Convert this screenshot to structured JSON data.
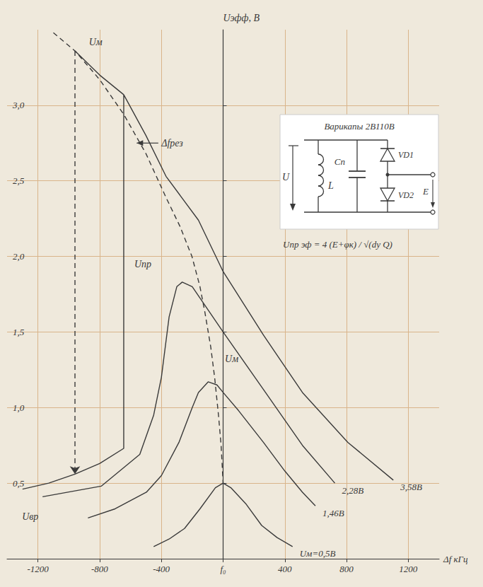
{
  "chart_data": {
    "type": "line",
    "x_label": "Δf кГц",
    "y_label": "Uэфф, В",
    "xlim": [
      -1400,
      1400
    ],
    "xticks": [
      -1200,
      -800,
      -400,
      {
        "value": 0,
        "label": "f₀"
      },
      400,
      800,
      1200
    ],
    "ylim": [
      0,
      3.5
    ],
    "yticks": [
      {
        "value": 0.5,
        "label": "0,5"
      },
      {
        "value": 1,
        "label": "1,0"
      },
      {
        "value": 1.5,
        "label": "1,5"
      },
      {
        "value": 2,
        "label": "2,0"
      },
      {
        "value": 2.5,
        "label": "2,5"
      },
      {
        "value": 3,
        "label": "3,0"
      }
    ],
    "grid": true,
    "color": "#3a3a3a",
    "series": [
      {
        "name": "3,58В",
        "line_style": "solid",
        "x": [
          -1300,
          -1130,
          -960,
          -800,
          -644,
          -644,
          -500,
          -370,
          -160,
          0,
          261,
          514,
          808,
          1103
        ],
        "values": [
          0.46,
          0.5,
          0.56,
          0.63,
          0.73,
          3.07,
          2.8,
          2.53,
          2.24,
          1.9,
          1.48,
          1.1,
          0.77,
          0.52
        ]
      },
      {
        "line_style": "solid",
        "x": [
          -960,
          -800,
          -644
        ],
        "values": [
          3.36,
          3.2,
          3.07
        ]
      },
      {
        "line_style": "dashed",
        "marker": "arrow",
        "x": [
          -960,
          -960
        ],
        "values": [
          3.36,
          0.56
        ]
      },
      {
        "name": "2,28В",
        "line_style": "solid",
        "x": [
          -1170,
          -790,
          -540,
          -450,
          -400,
          -350,
          -300,
          -265,
          -200,
          -100,
          0,
          261,
          514,
          724
        ],
        "values": [
          0.41,
          0.48,
          0.69,
          0.95,
          1.2,
          1.6,
          1.8,
          1.83,
          1.8,
          1.65,
          1.5,
          1.12,
          0.75,
          0.5
        ]
      },
      {
        "name": "1,46В",
        "line_style": "solid",
        "x": [
          -876,
          -700,
          -497,
          -400,
          -286,
          -200,
          -160,
          -97,
          -40,
          0,
          100,
          261,
          400,
          514,
          598
        ],
        "values": [
          0.27,
          0.33,
          0.44,
          0.55,
          0.77,
          1.0,
          1.1,
          1.17,
          1.15,
          1.1,
          0.98,
          0.77,
          0.58,
          0.44,
          0.35
        ]
      },
      {
        "name": "Uм=0,5В",
        "line_style": "solid",
        "x": [
          -450,
          -350,
          -250,
          -150,
          -50,
          0,
          50,
          150,
          250,
          350,
          450
        ],
        "values": [
          0.08,
          0.13,
          0.2,
          0.33,
          0.47,
          0.5,
          0.47,
          0.36,
          0.22,
          0.14,
          0.08
        ]
      },
      {
        "line_style": "dashed",
        "x": [
          -1100,
          -960,
          -800,
          -644,
          -500,
          -370,
          -280,
          -202,
          -150,
          -118,
          -80,
          -55,
          -30,
          -13,
          0
        ],
        "values": [
          3.48,
          3.36,
          3.17,
          2.94,
          2.68,
          2.39,
          2.2,
          2.0,
          1.8,
          1.63,
          1.4,
          1.2,
          0.95,
          0.75,
          0.5
        ]
      }
    ],
    "annotations": [
      "Uм",
      "Uпр",
      "Uм",
      "Uвр",
      "Δfрез"
    ],
    "formula": "Uпр эф = 4 (E+φк) / √(dу Q)",
    "inset": {
      "title": "Варикапы 2В110В",
      "labels": [
        "U",
        "L",
        "Cп",
        "VD1",
        "VD2",
        "E"
      ]
    }
  }
}
